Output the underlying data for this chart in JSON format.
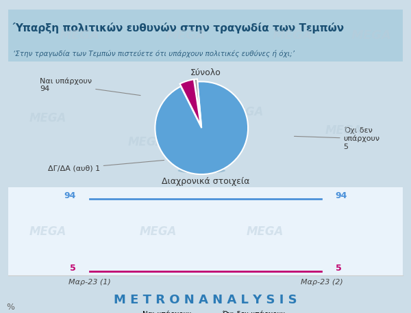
{
  "title_real": "Ύπαρξη πολιτικών ευθυνών στην τραγωδία των Τεμπών",
  "subtitle_real": "‘Στην τραγωδία των Τεμπών πιστεύετε ότι υπάρχουν πολιτικές ευθύνες ή όχι;’",
  "pie_title": "Σύνολο",
  "pie_values": [
    94,
    5,
    1
  ],
  "pie_colors": [
    "#5ba3d9",
    "#b0006e",
    "#999999"
  ],
  "pie_explode": [
    0,
    0.06,
    0.06
  ],
  "line_title": "Διαχρονικά στοιχεία",
  "line_x": [
    "Μαρ-23 (1)",
    "Μαρ-23 (2)"
  ],
  "line_yes": [
    94,
    94
  ],
  "line_no": [
    5,
    5
  ],
  "line_yes_color": "#4a90d9",
  "line_no_color": "#c0006e",
  "line_yes_label": "Ναι υπάρχουν",
  "line_no_label": "Όχι δεν υπάρχουν",
  "bg_color": "#ccdde8",
  "panel_bg": "#eaf3fb",
  "watermark": "MEGA",
  "footer_metron": "METRON",
  "footer_analysis": "ANALYSIS"
}
